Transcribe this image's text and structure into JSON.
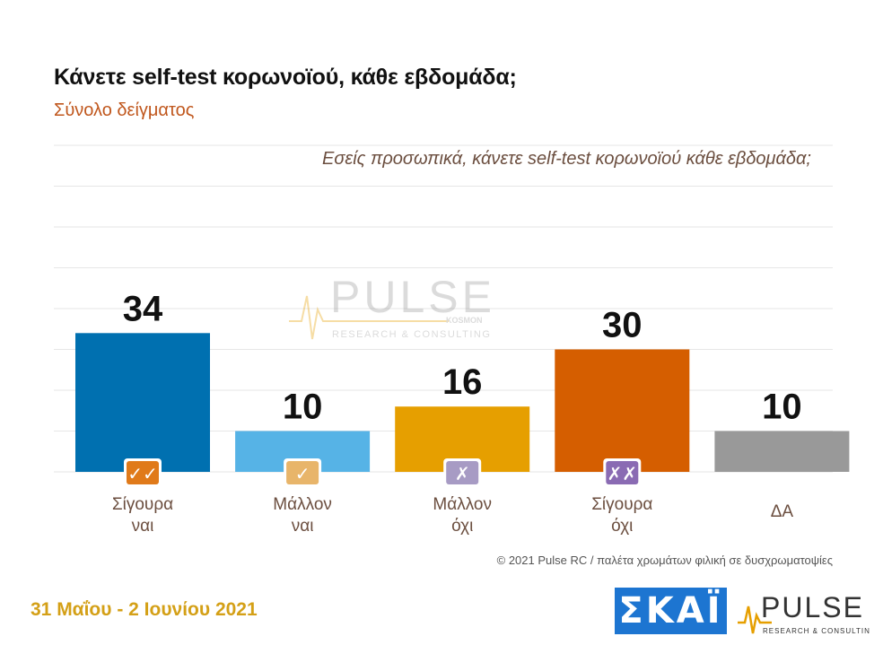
{
  "header": {
    "title": "Κάνετε self-test κορωνοϊού, κάθε εβδομάδα;",
    "subtitle": "Σύνολο δείγματος",
    "question": "Εσείς προσωπικά, κάνετε self-test κορωνοϊού κάθε εβδομάδα;"
  },
  "chart_data": {
    "type": "bar",
    "title": "Κάνετε self-test κορωνοϊού, κάθε εβδομάδα;",
    "subtitle": "Σύνολο δείγματος",
    "categories": [
      [
        "Σίγουρα",
        "ναι"
      ],
      [
        "Μάλλον",
        "ναι"
      ],
      [
        "Μάλλον",
        "όχι"
      ],
      [
        "Σίγουρα",
        "όχι"
      ],
      [
        "ΔΑ"
      ]
    ],
    "values": [
      34,
      10,
      16,
      30,
      10
    ],
    "colors": [
      "#0070b0",
      "#56b3e6",
      "#e69f00",
      "#d55e00",
      "#999999"
    ],
    "icons": [
      "double-check-icon",
      "check-icon",
      "cross-icon",
      "double-cross-icon",
      null
    ],
    "icon_colors": [
      "#e07a1a",
      "#e8b56a",
      "#a79bc4",
      "#8a6bb3",
      null
    ],
    "ylim": [
      0,
      80
    ],
    "grid": true,
    "legend": "none"
  },
  "watermark": {
    "brand": "PULSE",
    "tagline": "RESEARCH & CONSULTING",
    "mark": "KOSMON"
  },
  "footer": {
    "note": "© 2021 Pulse RC  /  παλέτα χρωμάτων φιλική σε δυσχρωματοψίες",
    "date": "31 Μαΐου - 2 Ιουνίου 2021",
    "broadcaster": "ΣΚΑΪ",
    "pollster": "PULSE",
    "pollster_tagline": "RESEARCH & CONSULTING"
  }
}
